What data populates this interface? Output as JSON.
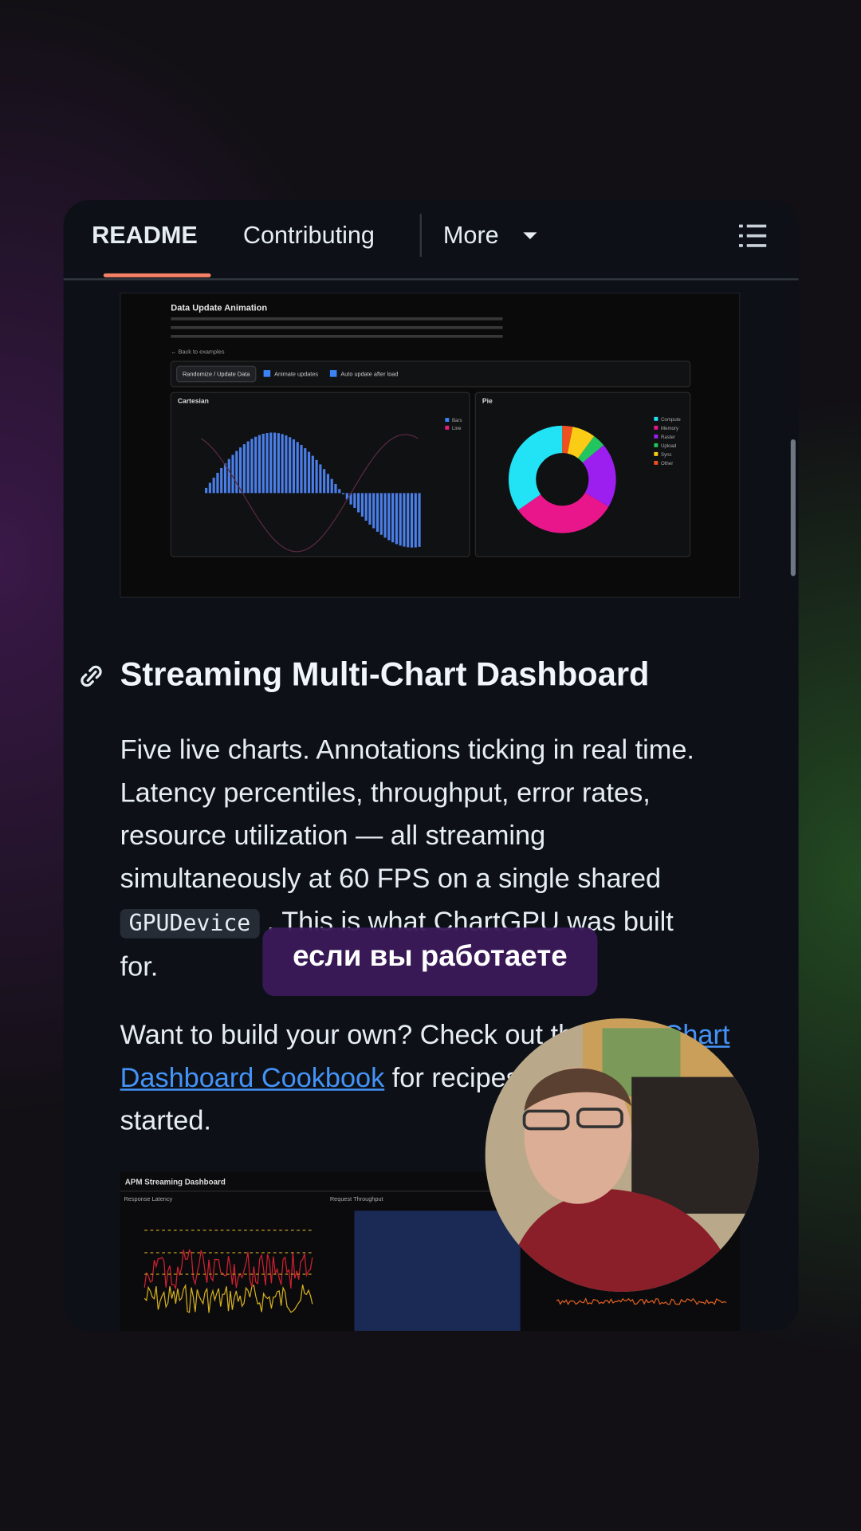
{
  "tabs": [
    "README",
    "Contributing",
    "More"
  ],
  "image_1": {
    "title": "Data Update Animation",
    "back_link": "← Back to examples",
    "button": "Randomize / Update Data",
    "checkbox_1": "Animate updates",
    "checkbox_2": "Auto update after load",
    "panel_1": "Cartesian",
    "panel_2": "Pie",
    "legend_1": [
      "Bars",
      "Line"
    ],
    "legend_2": [
      "Compute",
      "Memory",
      "Raster",
      "Upload",
      "Sync",
      "Other"
    ]
  },
  "heading": "Streaming Multi-Chart Dashboard",
  "paragraph_1": {
    "lines": [
      "Five live charts. Annotations ticking in real time.",
      "Latency percentiles, throughput, error rates,",
      "resource utilization — all streaming",
      "simultaneously at 60 FPS on a single shared"
    ],
    "code": "GPUDevice",
    "rest": [
      ". This is what ChartGPU was built",
      "for."
    ]
  },
  "paragraph_2": {
    "text_1": "Want to build your own? Check out the ",
    "link": "Multi-Chart Dashboard Cookbook",
    "text_2": " for recipes and tips to get started."
  },
  "image_2": {
    "title": "APM Streaming Dashboard",
    "panel_1": "Response Latency",
    "panel_2": "Request Throughput"
  },
  "caption": "если вы работаете"
}
